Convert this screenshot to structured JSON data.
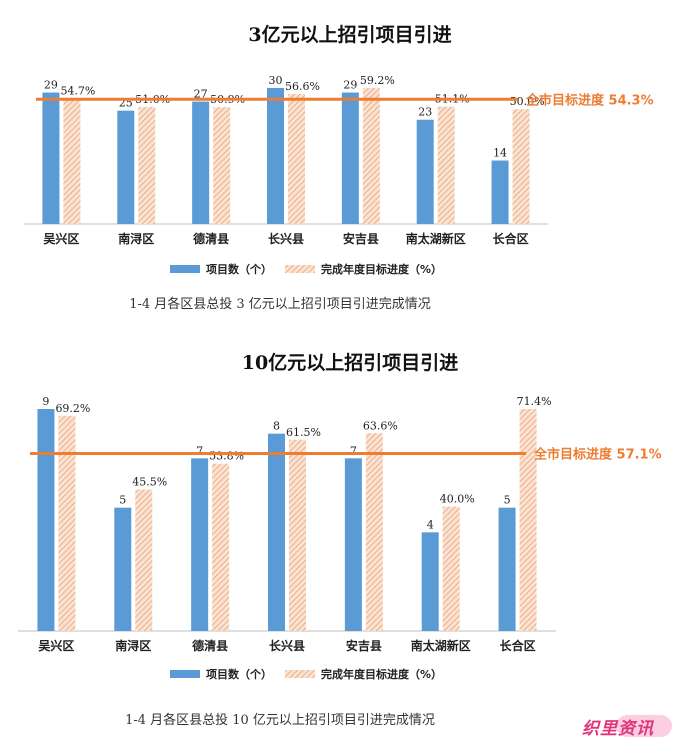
{
  "chart_data": [
    {
      "type": "bar",
      "title": "3亿元以上招引项目引进",
      "caption": "1-4 月各区县总投 3 亿元以上招引项目引进完成情况",
      "categories": [
        "吴兴区",
        "南浔区",
        "德清县",
        "长兴县",
        "安吉县",
        "南太湖新区",
        "长合区"
      ],
      "series": [
        {
          "name": "项目数（个）",
          "values": [
            29,
            25,
            27,
            30,
            29,
            23,
            14
          ],
          "labels": [
            "29",
            "25",
            "27",
            "30",
            "29",
            "23",
            "14"
          ],
          "color": "#5b9bd5"
        },
        {
          "name": "完成年度目标进度（%）",
          "values": [
            54.7,
            51.0,
            50.9,
            56.6,
            59.2,
            51.1,
            50.0
          ],
          "labels": [
            "54.7%",
            "51.0%",
            "50.9%",
            "56.6%",
            "59.2%",
            "51.1%",
            "50.0%"
          ],
          "color": "#f4b183"
        }
      ],
      "target": {
        "label": "全市目标进度 54.3%",
        "value": 54.3,
        "color": "#ed7d31"
      },
      "count_scale": 30,
      "percent_scale": 59.2,
      "legend_position": "bottom"
    },
    {
      "type": "bar",
      "title": "10亿元以上招引项目引进",
      "caption": "1-4 月各区县总投 10 亿元以上招引项目引进完成情况",
      "categories": [
        "吴兴区",
        "南浔区",
        "德清县",
        "长兴县",
        "安吉县",
        "南太湖新区",
        "长合区"
      ],
      "series": [
        {
          "name": "项目数（个）",
          "values": [
            9,
            5,
            7,
            8,
            7,
            4,
            5
          ],
          "labels": [
            "9",
            "5",
            "7",
            "8",
            "7",
            "4",
            "5"
          ],
          "color": "#5b9bd5"
        },
        {
          "name": "完成年度目标进度（%）",
          "values": [
            69.2,
            45.5,
            53.8,
            61.5,
            63.6,
            40.0,
            71.4
          ],
          "labels": [
            "69.2%",
            "45.5%",
            "53.8%",
            "61.5%",
            "63.6%",
            "40.0%",
            "71.4%"
          ],
          "color": "#f4b183"
        }
      ],
      "target": {
        "label": "全市目标进度 57.1%",
        "value": 57.1,
        "color": "#ed7d31"
      },
      "count_scale": 9,
      "percent_scale": 71.4,
      "legend_position": "bottom"
    }
  ],
  "watermark": {
    "text": "织里资讯"
  }
}
